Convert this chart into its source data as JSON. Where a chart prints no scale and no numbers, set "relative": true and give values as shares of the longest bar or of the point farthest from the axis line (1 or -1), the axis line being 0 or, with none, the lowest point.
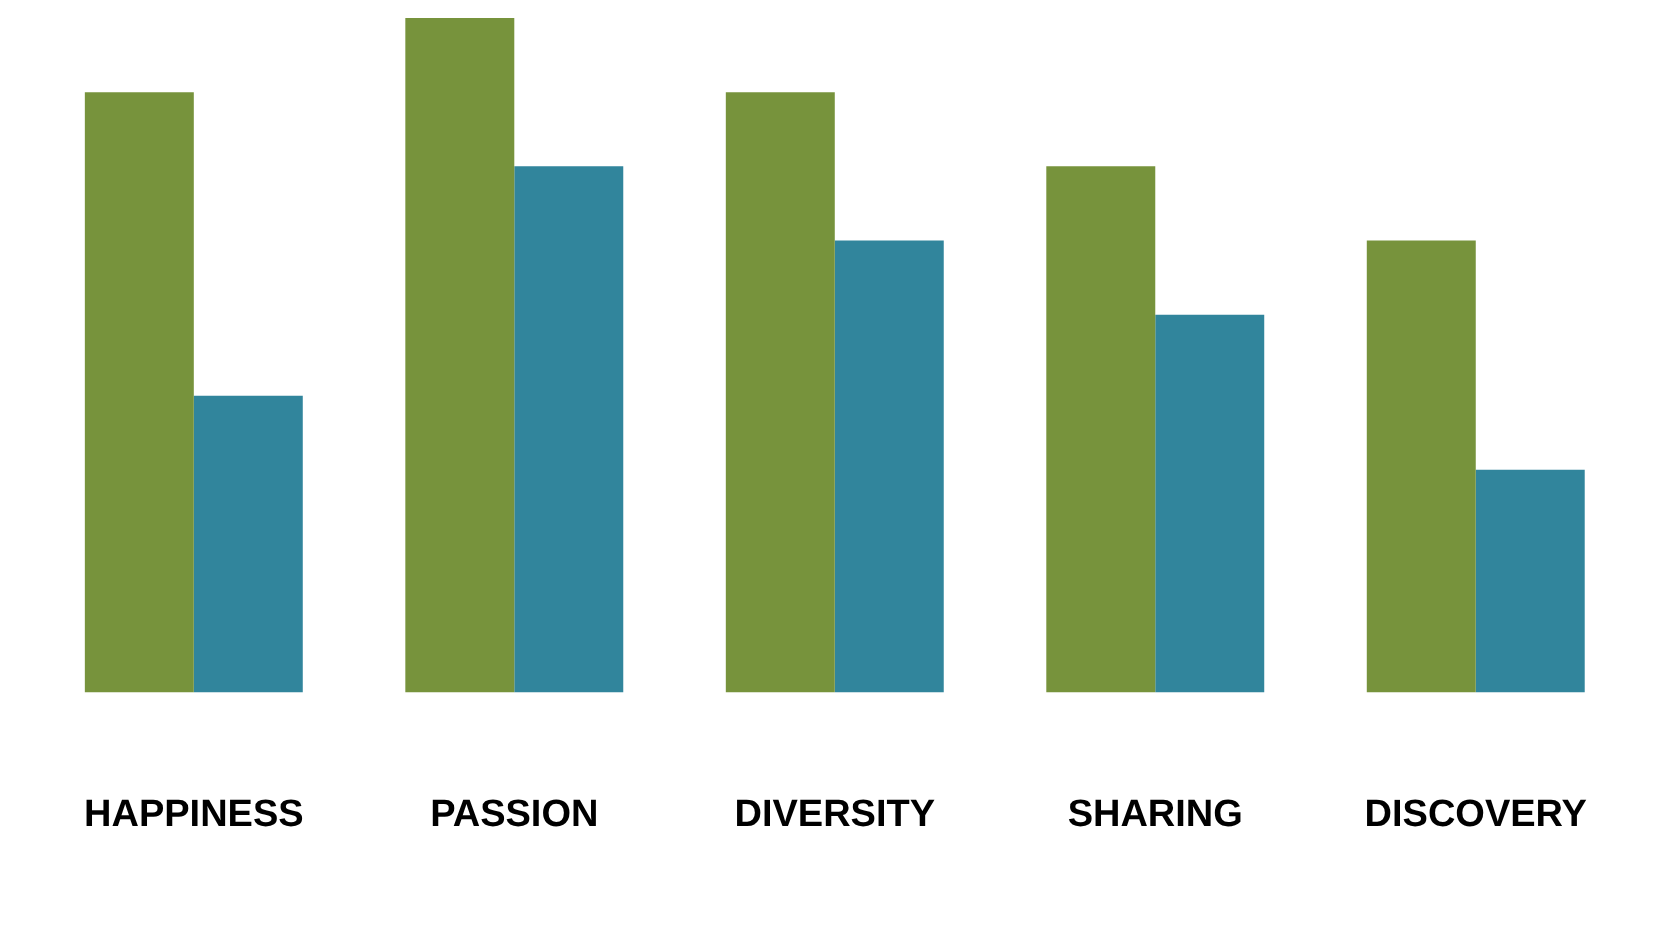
{
  "chart_data": {
    "type": "bar",
    "relative": true,
    "categories": [
      "HAPPINESS",
      "PASSION",
      "DIVERSITY",
      "SHARING",
      "DISCOVERY"
    ],
    "series": [
      {
        "color": "#77933c",
        "values": [
          0.89,
          1,
          0.89,
          0.78,
          0.67
        ]
      },
      {
        "color": "#31859c",
        "values": [
          0.44,
          0.78,
          0.67,
          0.56,
          0.33
        ]
      }
    ],
    "legend": false,
    "grid": false
  }
}
